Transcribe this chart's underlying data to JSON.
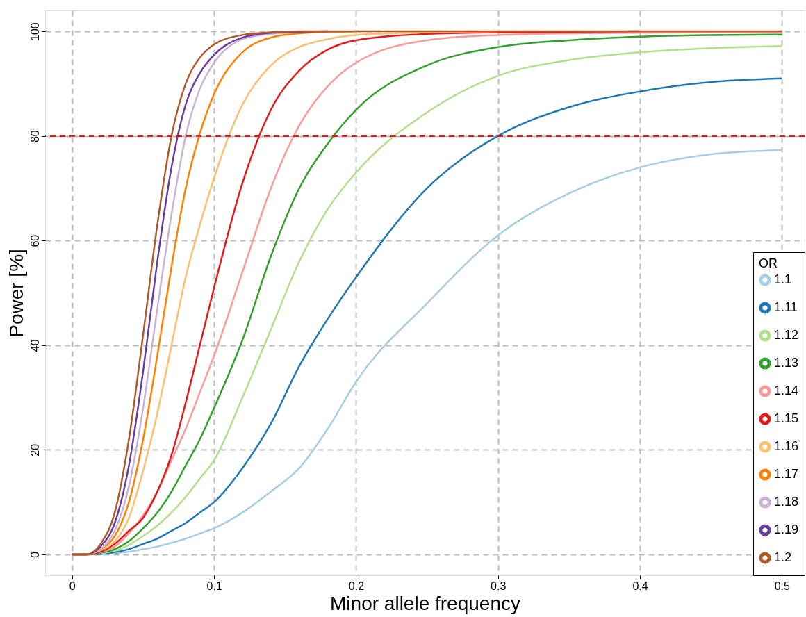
{
  "chart_data": {
    "type": "line",
    "xlabel": "Minor allele frequency",
    "ylabel": "Power [%]",
    "legend_title": "OR",
    "legend": "bottom right",
    "grid": true,
    "line_style": "solid",
    "marker": "none",
    "x": [
      0,
      0.01,
      0.02,
      0.03,
      0.04,
      0.05,
      0.06,
      0.07,
      0.08,
      0.09,
      0.1,
      0.12,
      0.14,
      0.16,
      0.18,
      0.2,
      0.25,
      0.3,
      0.35,
      0.4,
      0.45,
      0.5
    ],
    "xlim": [
      -0.019,
      0.516
    ],
    "ylim": [
      -4,
      104
    ],
    "xticks": [
      0,
      0.1,
      0.2,
      0.3,
      0.4,
      0.5
    ],
    "yticks": [
      0,
      20,
      40,
      60,
      80,
      100
    ],
    "ref_lines": [
      {
        "axis": "y",
        "value": 80,
        "color": "#e31a1c",
        "line_style": "dashed"
      }
    ],
    "series": [
      {
        "name": "1.1",
        "color": "#a6cee3",
        "values": [
          0,
          0,
          0,
          0.2,
          0.5,
          1,
          1.5,
          2.2,
          3,
          4,
          5,
          8,
          12,
          16.5,
          24,
          33,
          48,
          61,
          69,
          74,
          76.5,
          77.3
        ]
      },
      {
        "name": "1.11",
        "color": "#1f78b4",
        "values": [
          0,
          0,
          0.1,
          0.4,
          1,
          2,
          3,
          4.5,
          6,
          8,
          10,
          16.5,
          25,
          36,
          45,
          53,
          70,
          80,
          85.5,
          88.5,
          90.3,
          91
        ]
      },
      {
        "name": "1.12",
        "color": "#b2df8a",
        "values": [
          0,
          0,
          0.2,
          0.7,
          1.8,
          3.5,
          5.5,
          8,
          11,
          14.5,
          18,
          30,
          43,
          56,
          66,
          73,
          84.5,
          91.5,
          94.5,
          96,
          96.8,
          97.2
        ]
      },
      {
        "name": "1.13",
        "color": "#33a02c",
        "values": [
          0,
          0,
          0.3,
          1,
          2.5,
          5,
          8,
          12,
          17,
          22,
          28,
          41,
          57,
          70,
          78.5,
          85,
          93.5,
          97,
          98.3,
          99,
          99.3,
          99.4
        ]
      },
      {
        "name": "1.14",
        "color": "#fb9a99",
        "values": [
          0,
          0,
          0.4,
          1.5,
          4,
          7.5,
          12,
          18,
          24,
          31,
          38,
          54,
          70,
          82,
          89.5,
          94,
          98.3,
          99.3,
          99.6,
          99.7,
          99.8,
          99.8
        ]
      },
      {
        "name": "1.15",
        "color": "#e31a1c",
        "values": [
          0,
          0,
          0.5,
          2,
          4.5,
          7,
          12,
          19,
          29,
          40,
          51,
          71,
          85,
          92.5,
          96.5,
          98.3,
          99.5,
          99.8,
          99.9,
          100,
          null,
          null
        ]
      },
      {
        "name": "1.16",
        "color": "#fdbf6f",
        "values": [
          0,
          0,
          0.8,
          2.5,
          7,
          16,
          27,
          40,
          53,
          63,
          72,
          86,
          93.5,
          97,
          98.5,
          99.3,
          99.8,
          100,
          null,
          null,
          null,
          null
        ]
      },
      {
        "name": "1.17",
        "color": "#ff7f00",
        "values": [
          0,
          0,
          1,
          3.5,
          10,
          22,
          38,
          55,
          70,
          80.5,
          88,
          96,
          98.8,
          99.6,
          99.9,
          100,
          null,
          null,
          null,
          null,
          null,
          null
        ]
      },
      {
        "name": "1.18",
        "color": "#cab2d6",
        "values": [
          0,
          0,
          1,
          4.5,
          13,
          28,
          47,
          65,
          80,
          89,
          94,
          98.5,
          99.5,
          99.8,
          100,
          null,
          null,
          null,
          null,
          null,
          null,
          null
        ]
      },
      {
        "name": "1.19",
        "color": "#6a3d9a",
        "values": [
          0,
          0,
          1.5,
          6,
          17,
          35,
          56,
          74,
          86,
          92,
          95.5,
          98.8,
          99.7,
          99.9,
          100,
          null,
          null,
          null,
          null,
          null,
          null,
          null
        ]
      },
      {
        "name": "1.2",
        "color": "#b15928",
        "values": [
          0,
          0,
          2,
          8,
          22,
          42,
          63,
          80,
          90,
          95,
          97.5,
          99.3,
          99.8,
          100,
          100,
          100,
          100,
          100,
          100,
          100,
          100,
          100
        ]
      }
    ]
  }
}
